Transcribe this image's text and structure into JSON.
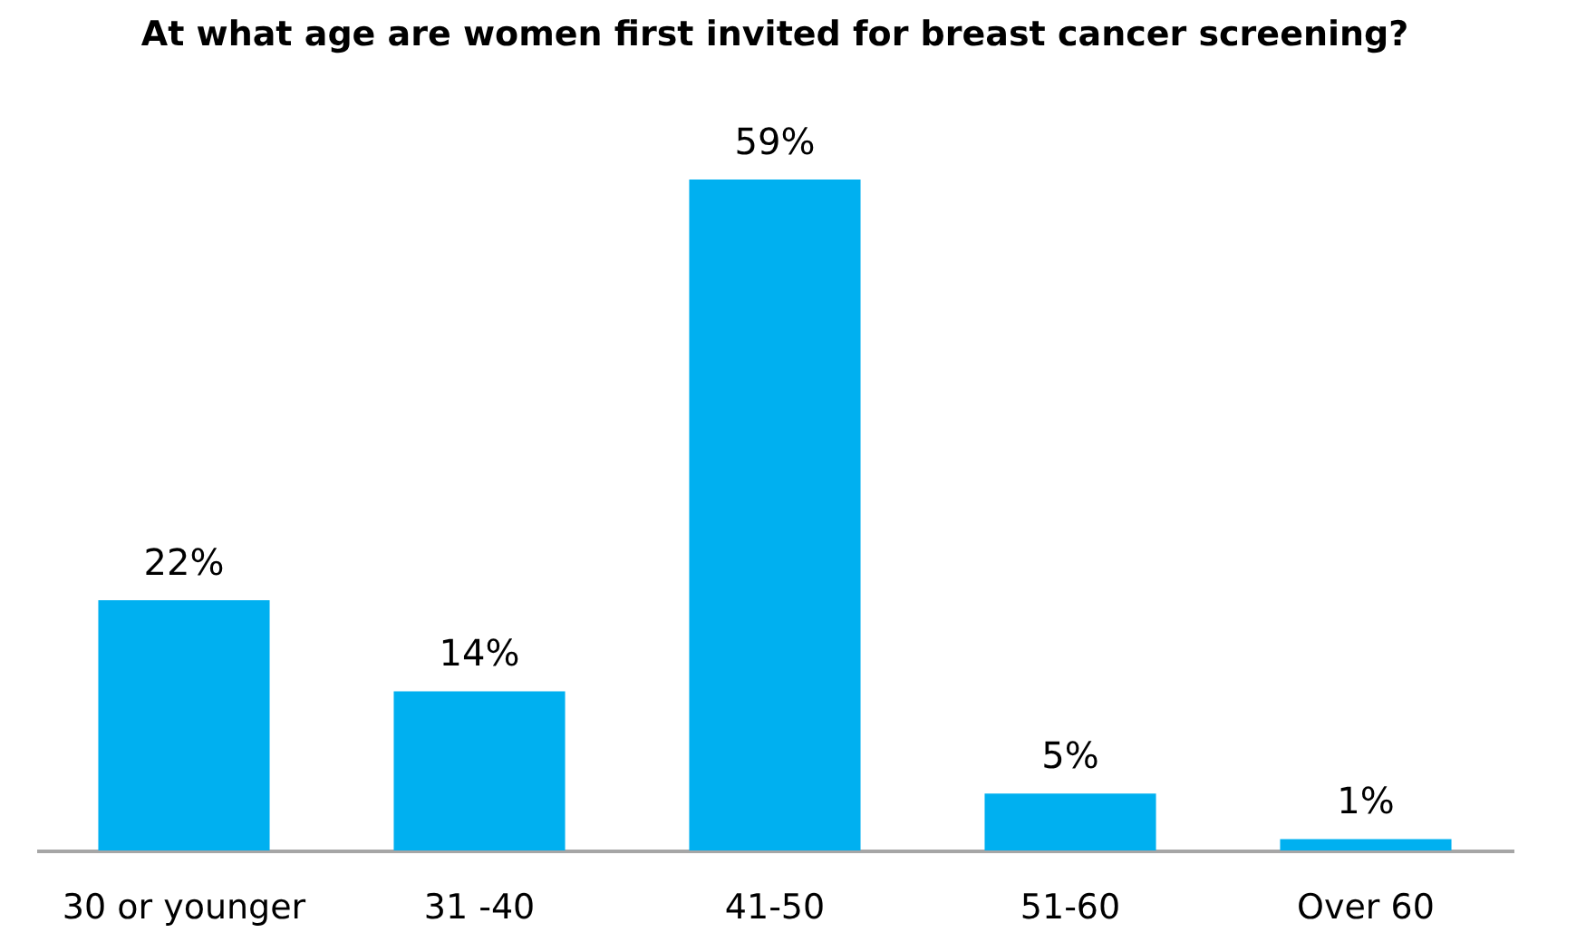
{
  "chart_data": {
    "type": "bar",
    "title": "At what age are women first invited for breast cancer screening?",
    "categories": [
      "30 or younger",
      "31 -40",
      "41-50",
      "51-60",
      "Over 60"
    ],
    "values": [
      22,
      14,
      59,
      5,
      1
    ],
    "value_labels": [
      "22%",
      "14%",
      "59%",
      "5%",
      "1%"
    ],
    "color": "#00b0f0",
    "grid": false
  }
}
